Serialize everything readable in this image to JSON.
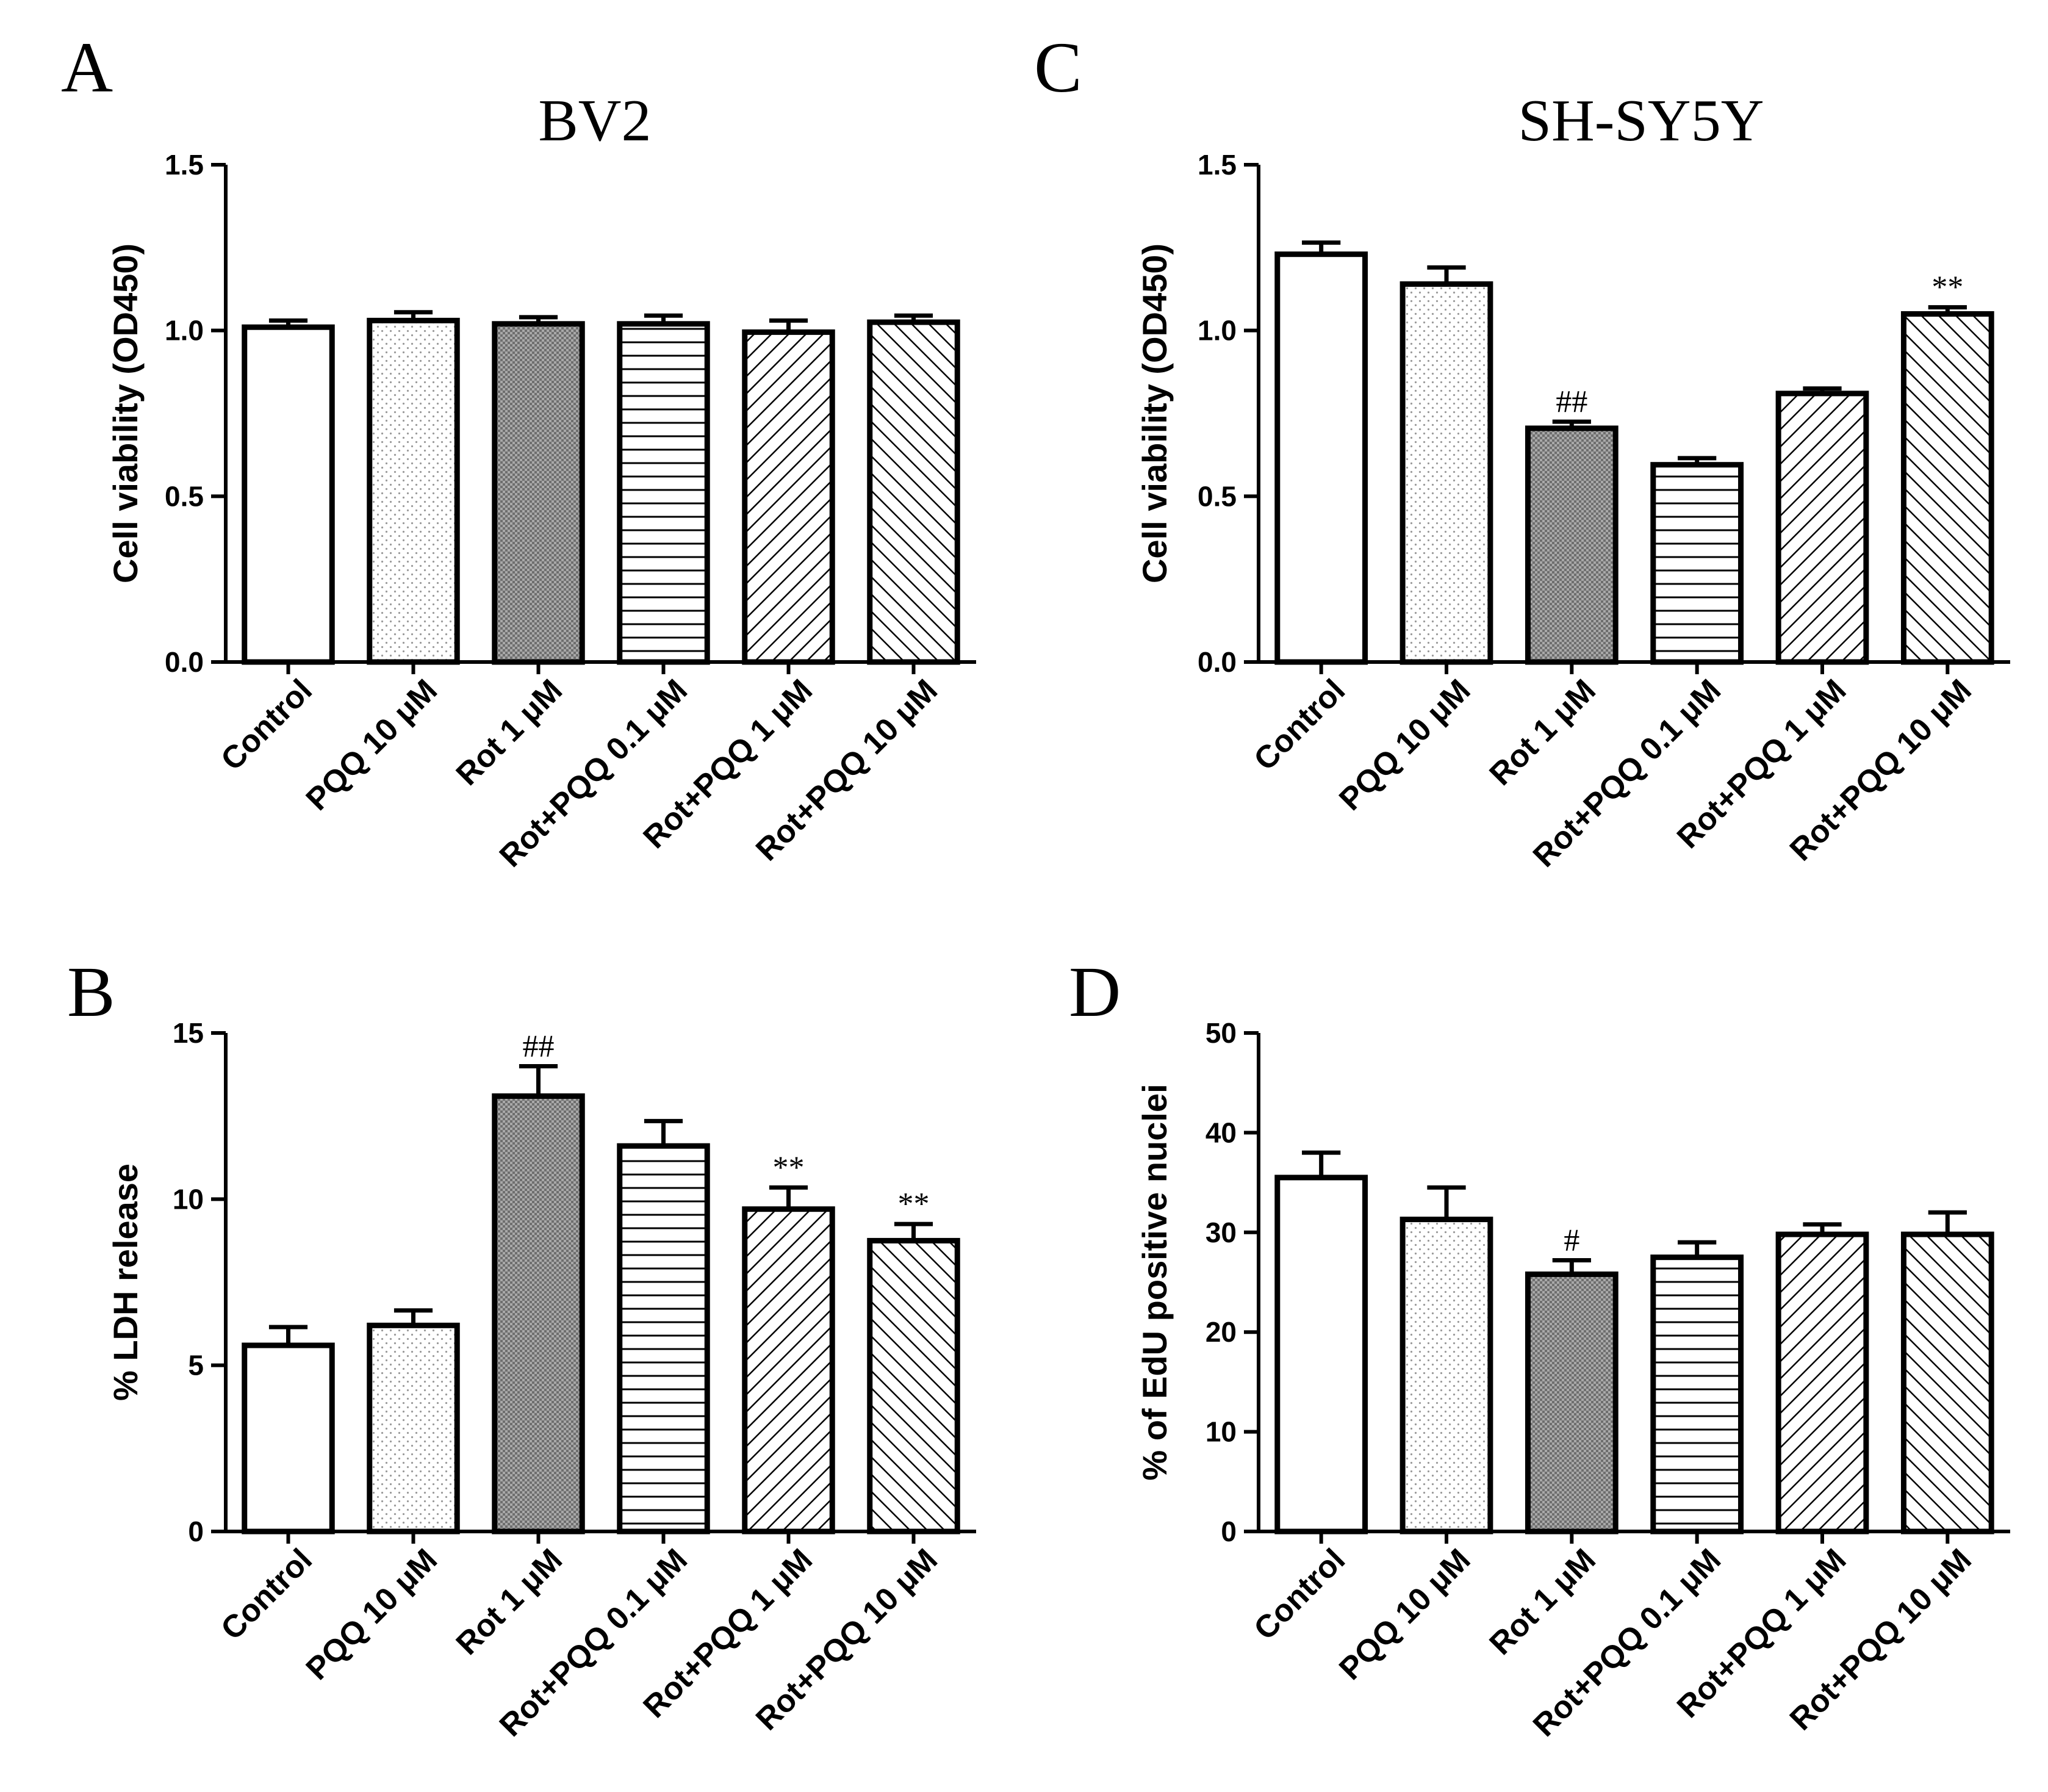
{
  "figure": {
    "colors": {
      "stroke": "#000000",
      "background": "#ffffff",
      "dense_fill": "#a8a8a8",
      "dot": "#9a9a9a"
    },
    "pattern_names": [
      "open",
      "sparse-dots",
      "dense-grid",
      "horizontal-lines",
      "diagonal-right",
      "diagonal-left"
    ]
  },
  "chart_data": [
    {
      "panel": "A",
      "type": "bar",
      "title": "BV2",
      "xlabel": "",
      "ylabel": "Cell viability (OD450)",
      "ylim": [
        0,
        1.5
      ],
      "yticks": [
        0.0,
        0.5,
        1.0,
        1.5
      ],
      "ytick_labels": [
        "0.0",
        "0.5",
        "1.0",
        "1.5"
      ],
      "categories": [
        "Control",
        "PQQ 10 μM",
        "Rot 1 μM",
        "Rot+PQQ 0.1 μM",
        "Rot+PQQ 1 μM",
        "Rot+PQQ 10 μM"
      ],
      "values": [
        1.01,
        1.03,
        1.02,
        1.02,
        0.995,
        1.025
      ],
      "errors": [
        0.02,
        0.025,
        0.02,
        0.025,
        0.035,
        0.02
      ],
      "annotations": [
        "",
        "",
        "",
        "",
        "",
        ""
      ]
    },
    {
      "panel": "C",
      "type": "bar",
      "title": "SH-SY5Y",
      "xlabel": "",
      "ylabel": "Cell viability (OD450)",
      "ylim": [
        0,
        1.5
      ],
      "yticks": [
        0.0,
        0.5,
        1.0,
        1.5
      ],
      "ytick_labels": [
        "0.0",
        "0.5",
        "1.0",
        "1.5"
      ],
      "categories": [
        "Control",
        "PQQ 10 μM",
        "Rot 1 μM",
        "Rot+PQQ 0.1 μM",
        "Rot+PQQ 1 μM",
        "Rot+PQQ 10 μM"
      ],
      "values": [
        1.23,
        1.14,
        0.705,
        0.595,
        0.81,
        1.05
      ],
      "errors": [
        0.035,
        0.05,
        0.02,
        0.02,
        0.015,
        0.02
      ],
      "annotations": [
        "",
        "",
        "##",
        "",
        "",
        "**"
      ]
    },
    {
      "panel": "B",
      "type": "bar",
      "title": "",
      "xlabel": "",
      "ylabel": "% LDH release",
      "ylim": [
        0,
        15
      ],
      "yticks": [
        0,
        5,
        10,
        15
      ],
      "ytick_labels": [
        "0",
        "5",
        "10",
        "15"
      ],
      "categories": [
        "Control",
        "PQQ 10 μM",
        "Rot 1 μM",
        "Rot+PQQ 0.1 μM",
        "Rot+PQQ 1 μM",
        "Rot+PQQ 10 μM"
      ],
      "values": [
        5.6,
        6.2,
        13.1,
        11.6,
        9.7,
        8.75
      ],
      "errors": [
        0.55,
        0.45,
        0.9,
        0.75,
        0.65,
        0.5
      ],
      "annotations": [
        "",
        "",
        "##",
        "",
        "**",
        "**"
      ]
    },
    {
      "panel": "D",
      "type": "bar",
      "title": "",
      "xlabel": "",
      "ylabel": "% of EdU positive nuclei",
      "ylim": [
        0,
        50
      ],
      "yticks": [
        0,
        10,
        20,
        30,
        40,
        50
      ],
      "ytick_labels": [
        "0",
        "10",
        "20",
        "30",
        "40",
        "50"
      ],
      "categories": [
        "Control",
        "PQQ 10 μM",
        "Rot 1 μM",
        "Rot+PQQ 0.1 μM",
        "Rot+PQQ 1 μM",
        "Rot+PQQ 10 μM"
      ],
      "values": [
        35.5,
        31.3,
        25.8,
        27.5,
        29.8,
        29.8
      ],
      "errors": [
        2.5,
        3.2,
        1.4,
        1.5,
        1.0,
        2.2
      ],
      "annotations": [
        "",
        "",
        "#",
        "",
        "",
        ""
      ]
    }
  ]
}
